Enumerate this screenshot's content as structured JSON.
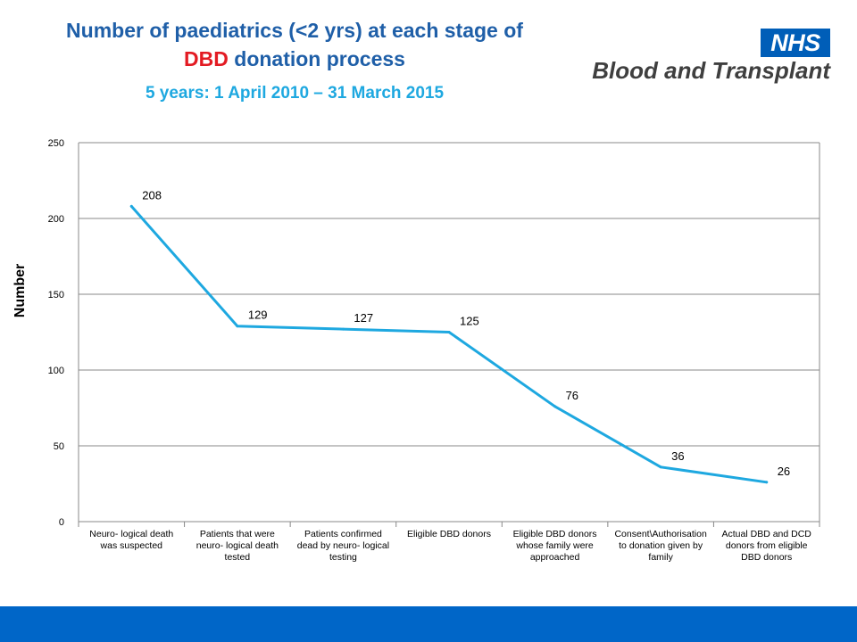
{
  "header": {
    "title_line1": "Number of paediatrics (<2 yrs) at each stage of",
    "title_red": "DBD",
    "title_rest": " donation process",
    "subtitle": "5 years: 1 April 2010 – 31 March 2015"
  },
  "logo": {
    "nhs": "NHS",
    "org": "Blood and Transplant"
  },
  "chart_data": {
    "type": "line",
    "categories": [
      [
        "Neuro- logical death",
        "was suspected"
      ],
      [
        "Patients that were",
        "neuro- logical death",
        "tested"
      ],
      [
        "Patients confirmed",
        "dead by neuro- logical",
        "testing"
      ],
      [
        "Eligible DBD donors"
      ],
      [
        "Eligible DBD donors",
        "whose family were",
        "approached"
      ],
      [
        "Consent\\Authorisation",
        "to donation given by",
        "family"
      ],
      [
        "Actual DBD and DCD",
        "donors from eligible",
        "DBD donors"
      ]
    ],
    "values": [
      208,
      129,
      127,
      125,
      76,
      36,
      26
    ],
    "ylabel": "Number",
    "ylim": [
      0,
      250
    ],
    "yticks": [
      0,
      50,
      100,
      150,
      200,
      250
    ],
    "grid": true,
    "line_color": "#1ea8e0"
  },
  "colors": {
    "title_blue": "#1f5fa8",
    "title_red": "#e31b23",
    "subtitle_blue": "#1ea8e0",
    "nhs_blue": "#005eb8",
    "footer_blue": "#0066c8"
  }
}
